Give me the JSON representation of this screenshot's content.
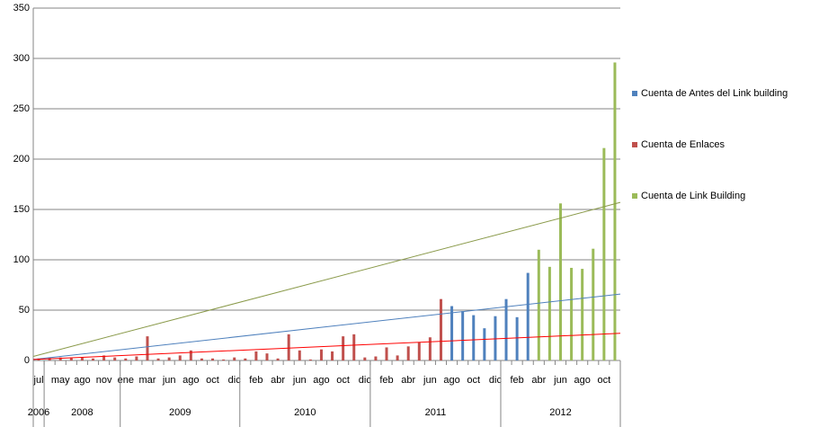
{
  "chart_data": {
    "type": "bar",
    "categories": [
      "jul",
      null,
      "may",
      null,
      "ago",
      null,
      "nov",
      null,
      "ene",
      null,
      "mar",
      null,
      "jun",
      null,
      "ago",
      null,
      "oct",
      null,
      "dic",
      null,
      "feb",
      null,
      "abr",
      null,
      "jun",
      null,
      "ago",
      null,
      "oct",
      null,
      "dic",
      null,
      "feb",
      null,
      "abr",
      null,
      "jun",
      null,
      "ago",
      null,
      "oct",
      null,
      "dic",
      null,
      "feb",
      null,
      "abr",
      null,
      "jun",
      null,
      "ago",
      null,
      "oct",
      null
    ],
    "years": [
      "2006",
      "2008",
      "2008",
      "2008",
      "2008",
      "2008",
      "2008",
      "2008",
      "2009",
      "2009",
      "2009",
      "2009",
      "2009",
      "2009",
      "2009",
      "2009",
      "2009",
      "2009",
      "2009",
      "2010",
      "2010",
      "2010",
      "2010",
      "2010",
      "2010",
      "2010",
      "2010",
      "2010",
      "2010",
      "2010",
      "2010",
      "2011",
      "2011",
      "2011",
      "2011",
      "2011",
      "2011",
      "2011",
      "2011",
      "2011",
      "2011",
      "2011",
      "2011",
      "2012",
      "2012",
      "2012",
      "2012",
      "2012",
      "2012",
      "2012",
      "2012",
      "2012",
      "2012",
      "2012"
    ],
    "series": [
      {
        "name": "Cuenta de Antes del Link building",
        "color": "#4f81bd",
        "trend": [
          1,
          66
        ],
        "values": [
          null,
          null,
          null,
          null,
          null,
          null,
          null,
          null,
          null,
          null,
          null,
          null,
          null,
          null,
          null,
          null,
          null,
          null,
          null,
          null,
          null,
          null,
          null,
          null,
          null,
          null,
          null,
          null,
          null,
          null,
          null,
          null,
          null,
          null,
          null,
          null,
          null,
          null,
          54,
          49,
          45,
          32,
          44,
          61,
          43,
          87,
          null,
          null,
          null,
          null,
          null,
          null,
          null,
          null
        ]
      },
      {
        "name": "Cuenta de Enlaces",
        "color": "#c0504d",
        "trend": [
          1,
          27
        ],
        "trend_color": "#ff0000",
        "values": [
          2,
          3,
          3,
          3,
          3,
          2,
          5,
          3,
          2,
          4,
          24,
          2,
          3,
          5,
          10,
          2,
          2,
          1,
          3,
          2,
          9,
          7,
          2,
          26,
          10,
          1,
          11,
          9,
          24,
          26,
          3,
          4,
          13,
          5,
          14,
          18,
          23,
          61,
          null,
          null,
          null,
          null,
          null,
          null,
          null,
          null,
          null,
          null,
          null,
          null,
          null,
          null,
          null,
          null
        ]
      },
      {
        "name": "Cuenta de Link Building",
        "color": "#9bbb59",
        "trend": [
          4,
          157
        ],
        "trend_color": "#8a9a4a",
        "values": [
          null,
          null,
          null,
          null,
          null,
          null,
          null,
          null,
          null,
          null,
          null,
          null,
          null,
          null,
          null,
          null,
          null,
          null,
          null,
          null,
          null,
          null,
          null,
          null,
          null,
          null,
          null,
          null,
          null,
          null,
          null,
          null,
          null,
          null,
          null,
          null,
          null,
          null,
          null,
          null,
          null,
          null,
          null,
          null,
          null,
          null,
          110,
          93,
          156,
          92,
          91,
          111,
          211,
          296
        ]
      }
    ],
    "ylim": [
      0,
      350
    ],
    "yticks": [
      0,
      50,
      100,
      150,
      200,
      250,
      300,
      350
    ],
    "grid": true,
    "legend": "right"
  }
}
